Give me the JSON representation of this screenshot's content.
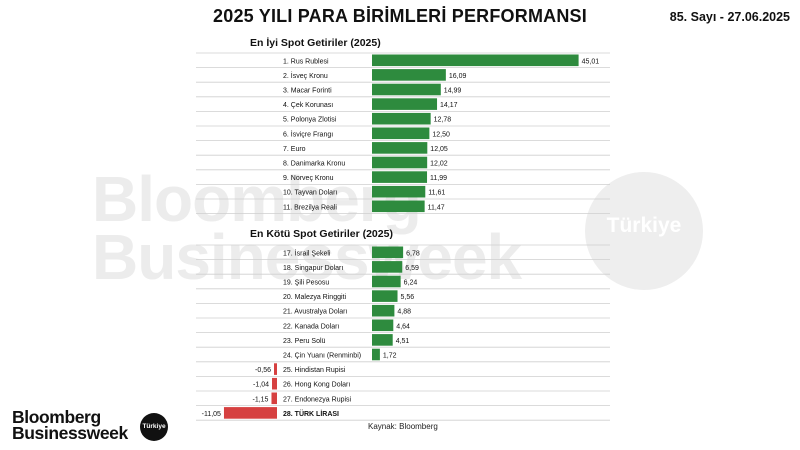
{
  "header": {
    "title": "2025 YILI PARA BİRİMLERİ PERFORMANSI",
    "issue": "85. Sayı - 27.06.2025"
  },
  "watermark": {
    "line1": "Bloomberg",
    "line2": "Businessweek",
    "circle": "Türkiye"
  },
  "footer": {
    "source": "Kaynak: Bloomberg",
    "logo_line1": "Bloomberg",
    "logo_line2": "Businessweek",
    "logo_badge": "Türkiye"
  },
  "colors": {
    "positive": "#2e8b3e",
    "negative": "#d64040"
  },
  "chart_data": [
    {
      "type": "bar",
      "orientation": "horizontal",
      "title": "En İyi Spot Getiriler (2025)",
      "categories": [
        "1. Rus Rublesi",
        "2. İsveç Kronu",
        "3. Macar Forinti",
        "4. Çek Korunası",
        "5. Polonya Zlotisi",
        "6. İsviçre Frangı",
        "7. Euro",
        "8. Danimarka Kronu",
        "9. Norveç Kronu",
        "10. Tayvan Doları",
        "11. Brezilya Reali"
      ],
      "values": [
        45.01,
        16.09,
        14.99,
        14.17,
        12.78,
        12.5,
        12.05,
        12.02,
        11.99,
        11.61,
        11.47
      ],
      "value_labels": [
        "45,01",
        "16,09",
        "14,99",
        "14,17",
        "12,78",
        "12,50",
        "12,05",
        "12,02",
        "11,99",
        "11,61",
        "11,47"
      ],
      "grid": false
    },
    {
      "type": "bar",
      "orientation": "horizontal",
      "title": "En Kötü Spot Getiriler (2025)",
      "categories": [
        "17. İsrail Şekeli",
        "18. Singapur Doları",
        "19. Şili Pesosu",
        "20. Malezya Ringgiti",
        "21. Avustralya Doları",
        "22. Kanada Doları",
        "23. Peru Solü",
        "24. Çin Yuanı (Renminbi)",
        "25. Hindistan Rupisi",
        "26. Hong Kong Doları",
        "27. Endonezya Rupisi",
        "28. TÜRK LİRASI"
      ],
      "values": [
        6.78,
        6.59,
        6.24,
        5.56,
        4.88,
        4.64,
        4.51,
        1.72,
        -0.56,
        -1.04,
        -1.15,
        -11.05
      ],
      "value_labels": [
        "6,78",
        "6,59",
        "6,24",
        "5,56",
        "4,88",
        "4,64",
        "4,51",
        "1,72",
        "-0,56",
        "-1,04",
        "-1,15",
        "-11,05"
      ],
      "grid": false
    }
  ]
}
